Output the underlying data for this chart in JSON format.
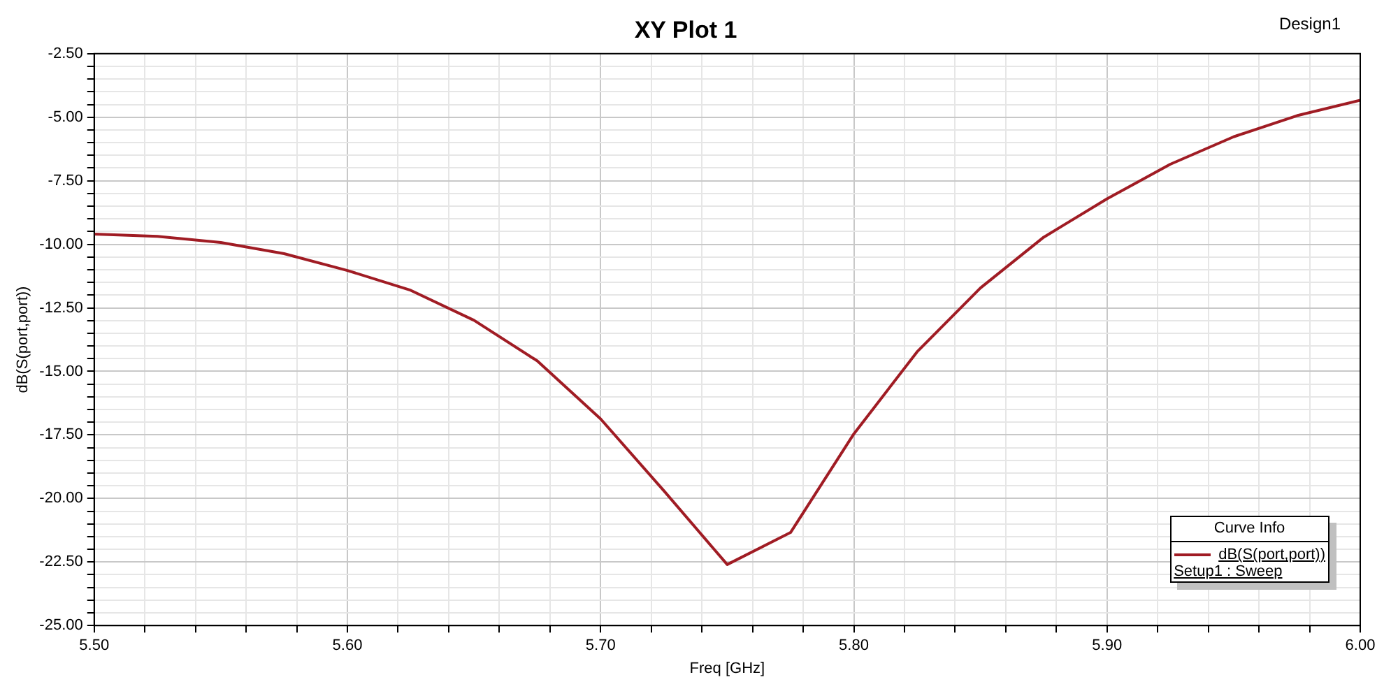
{
  "chart_data": {
    "type": "line",
    "title": "XY Plot 1",
    "xlabel": "Freq [GHz]",
    "ylabel": "dB(S(port,port))",
    "legend_title": "Curve Info",
    "legend": "bottom right",
    "grid": true,
    "marker": "none",
    "line_style": "solid",
    "annotations": [
      "Design1",
      "Setup1 : Sweep"
    ],
    "x": [
      5.5,
      5.525,
      5.55,
      5.575,
      5.6,
      5.625,
      5.65,
      5.675,
      5.7,
      5.725,
      5.75,
      5.775,
      5.8,
      5.825,
      5.85,
      5.875,
      5.9,
      5.925,
      5.95,
      5.975,
      6.0
    ],
    "series": [
      {
        "name": "dB(S(port,port))",
        "color": "#a01c24",
        "values": [
          -9.6,
          -9.69,
          -9.93,
          -10.37,
          -11.03,
          -11.81,
          -12.99,
          -14.59,
          -16.87,
          -19.7,
          -22.6,
          -21.34,
          -17.46,
          -14.23,
          -11.72,
          -9.72,
          -8.21,
          -6.85,
          -5.77,
          -4.94,
          -4.33
        ]
      }
    ],
    "xlim": [
      5.5,
      6.0
    ],
    "ylim": [
      -25,
      -2.5
    ],
    "xticks": [
      {
        "value": 5.5,
        "label": "5.50"
      },
      {
        "value": 5.52,
        "label": null
      },
      {
        "value": 5.54,
        "label": null
      },
      {
        "value": 5.56,
        "label": null
      },
      {
        "value": 5.58,
        "label": null
      },
      {
        "value": 5.6,
        "label": "5.60"
      },
      {
        "value": 5.62,
        "label": null
      },
      {
        "value": 5.64,
        "label": null
      },
      {
        "value": 5.66,
        "label": null
      },
      {
        "value": 5.68,
        "label": null
      },
      {
        "value": 5.7,
        "label": "5.70"
      },
      {
        "value": 5.72,
        "label": null
      },
      {
        "value": 5.74,
        "label": null
      },
      {
        "value": 5.76,
        "label": null
      },
      {
        "value": 5.78,
        "label": null
      },
      {
        "value": 5.8,
        "label": "5.80"
      },
      {
        "value": 5.82,
        "label": null
      },
      {
        "value": 5.84,
        "label": null
      },
      {
        "value": 5.86,
        "label": null
      },
      {
        "value": 5.88,
        "label": null
      },
      {
        "value": 5.9,
        "label": "5.90"
      },
      {
        "value": 5.92,
        "label": null
      },
      {
        "value": 5.94,
        "label": null
      },
      {
        "value": 5.96,
        "label": null
      },
      {
        "value": 5.98,
        "label": null
      },
      {
        "value": 6.0,
        "label": "6.00"
      }
    ],
    "yticks": [
      {
        "value": -25,
        "label": "-25.00"
      },
      {
        "value": -24.5,
        "label": null
      },
      {
        "value": -24,
        "label": null
      },
      {
        "value": -23.5,
        "label": null
      },
      {
        "value": -23,
        "label": null
      },
      {
        "value": -22.5,
        "label": "-22.50"
      },
      {
        "value": -22,
        "label": null
      },
      {
        "value": -21.5,
        "label": null
      },
      {
        "value": -21,
        "label": null
      },
      {
        "value": -20.5,
        "label": null
      },
      {
        "value": -20,
        "label": "-20.00"
      },
      {
        "value": -19.5,
        "label": null
      },
      {
        "value": -19,
        "label": null
      },
      {
        "value": -18.5,
        "label": null
      },
      {
        "value": -18,
        "label": null
      },
      {
        "value": -17.5,
        "label": "-17.50"
      },
      {
        "value": -17,
        "label": null
      },
      {
        "value": -16.5,
        "label": null
      },
      {
        "value": -16,
        "label": null
      },
      {
        "value": -15.5,
        "label": null
      },
      {
        "value": -15,
        "label": "-15.00"
      },
      {
        "value": -14.5,
        "label": null
      },
      {
        "value": -14,
        "label": null
      },
      {
        "value": -13.5,
        "label": null
      },
      {
        "value": -13,
        "label": null
      },
      {
        "value": -12.5,
        "label": "-12.50"
      },
      {
        "value": -12,
        "label": null
      },
      {
        "value": -11.5,
        "label": null
      },
      {
        "value": -11,
        "label": null
      },
      {
        "value": -10.5,
        "label": null
      },
      {
        "value": -10,
        "label": "-10.00"
      },
      {
        "value": -9.5,
        "label": null
      },
      {
        "value": -9,
        "label": null
      },
      {
        "value": -8.5,
        "label": null
      },
      {
        "value": -8,
        "label": null
      },
      {
        "value": -7.5,
        "label": "-7.50"
      },
      {
        "value": -7,
        "label": null
      },
      {
        "value": -6.5,
        "label": null
      },
      {
        "value": -6,
        "label": null
      },
      {
        "value": -5.5,
        "label": null
      },
      {
        "value": -5,
        "label": "-5.00"
      },
      {
        "value": -4.5,
        "label": null
      },
      {
        "value": -4,
        "label": null
      },
      {
        "value": -3.5,
        "label": null
      },
      {
        "value": -3,
        "label": null
      },
      {
        "value": -2.5,
        "label": "-2.50"
      }
    ]
  }
}
